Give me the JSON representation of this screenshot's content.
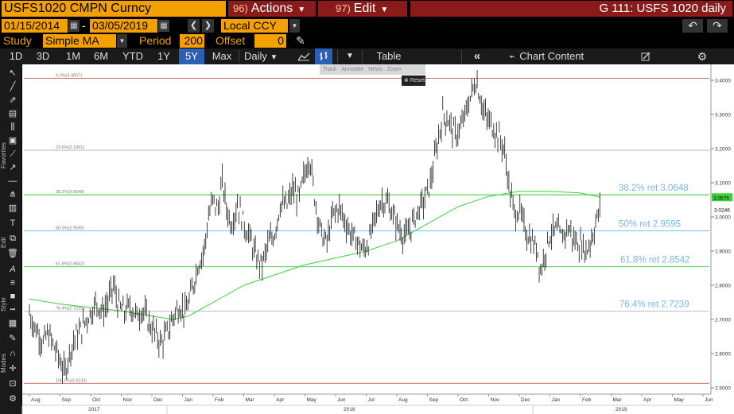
{
  "header": {
    "security": "USFS1020 CMPN Curncy",
    "actions_num": "96)",
    "actions_label": "Actions",
    "edit_num": "97)",
    "edit_label": "Edit",
    "screen_title": "G 111: USFS 1020 daily"
  },
  "controls": {
    "start_date": "01/15/2014",
    "dash": "-",
    "end_date": "03/05/2019",
    "currency": "Local CCY",
    "study_label": "Study",
    "study_value": "Simple MA",
    "period_label": "Period",
    "period_value": "200",
    "offset_label": "Offset",
    "offset_value": "0"
  },
  "toolbar": {
    "ranges": [
      "1D",
      "3D",
      "1M",
      "6M",
      "YTD",
      "1Y",
      "5Y",
      "Max"
    ],
    "selected_range": "5Y",
    "frequency": "Daily",
    "table_label": "Table",
    "chart_content_label": "Chart Content"
  },
  "popup": {
    "items": [
      "Track",
      "Annotate",
      "News",
      "Zoom"
    ],
    "reset": "Reset"
  },
  "side_labels": {
    "favorites": "Favorites",
    "edit": "Edit",
    "style": "Style",
    "modes": "Modes"
  },
  "chart_data": {
    "type": "line",
    "series_style": "ohlc-bars",
    "ylim": [
      2.5,
      4.0
    ],
    "y_ticks": [
      "2.5000",
      "2.6000",
      "2.7000",
      "2.8000",
      "2.9000",
      "3.0000",
      "3.1000",
      "3.2000",
      "3.3000",
      "3.4000"
    ],
    "x_month_labels": [
      "Aug",
      "Sep",
      "Oct",
      "Nov",
      "Dec",
      "Jan",
      "Feb",
      "Mar",
      "Apr",
      "May",
      "Jun",
      "Jul",
      "Aug",
      "Sep",
      "Oct",
      "Nov",
      "Dec",
      "Jan",
      "Feb",
      "Mar",
      "Apr",
      "May",
      "Jun"
    ],
    "x_year_labels": [
      {
        "label": "2017",
        "month_index": 2
      },
      {
        "label": "2018",
        "month_index": 11
      },
      {
        "label": "2019",
        "month_index": 19
      }
    ],
    "last_price": "3.0246",
    "ma_last": "3.0575",
    "price_series": [
      {
        "m": 0.0,
        "v": 2.72
      },
      {
        "m": 0.15,
        "v": 2.68
      },
      {
        "m": 0.3,
        "v": 2.66
      },
      {
        "m": 0.45,
        "v": 2.63
      },
      {
        "m": 0.6,
        "v": 2.66
      },
      {
        "m": 0.8,
        "v": 2.62
      },
      {
        "m": 1.0,
        "v": 2.58
      },
      {
        "m": 1.15,
        "v": 2.54
      },
      {
        "m": 1.3,
        "v": 2.6
      },
      {
        "m": 1.5,
        "v": 2.65
      },
      {
        "m": 1.7,
        "v": 2.67
      },
      {
        "m": 1.85,
        "v": 2.7
      },
      {
        "m": 2.0,
        "v": 2.72
      },
      {
        "m": 2.2,
        "v": 2.75
      },
      {
        "m": 2.4,
        "v": 2.72
      },
      {
        "m": 2.6,
        "v": 2.76
      },
      {
        "m": 2.75,
        "v": 2.8
      },
      {
        "m": 2.9,
        "v": 2.74
      },
      {
        "m": 3.1,
        "v": 2.72
      },
      {
        "m": 3.3,
        "v": 2.74
      },
      {
        "m": 3.5,
        "v": 2.71
      },
      {
        "m": 3.7,
        "v": 2.73
      },
      {
        "m": 3.9,
        "v": 2.69
      },
      {
        "m": 4.1,
        "v": 2.66
      },
      {
        "m": 4.3,
        "v": 2.63
      },
      {
        "m": 4.5,
        "v": 2.66
      },
      {
        "m": 4.7,
        "v": 2.71
      },
      {
        "m": 4.9,
        "v": 2.74
      },
      {
        "m": 5.1,
        "v": 2.72
      },
      {
        "m": 5.3,
        "v": 2.78
      },
      {
        "m": 5.5,
        "v": 2.86
      },
      {
        "m": 5.7,
        "v": 2.9
      },
      {
        "m": 5.85,
        "v": 3.0
      },
      {
        "m": 6.0,
        "v": 3.05
      },
      {
        "m": 6.15,
        "v": 3.02
      },
      {
        "m": 6.3,
        "v": 3.1
      },
      {
        "m": 6.45,
        "v": 3.02
      },
      {
        "m": 6.6,
        "v": 2.98
      },
      {
        "m": 6.8,
        "v": 3.04
      },
      {
        "m": 7.0,
        "v": 2.98
      },
      {
        "m": 7.2,
        "v": 2.94
      },
      {
        "m": 7.4,
        "v": 2.88
      },
      {
        "m": 7.6,
        "v": 2.86
      },
      {
        "m": 7.8,
        "v": 2.92
      },
      {
        "m": 8.0,
        "v": 2.95
      },
      {
        "m": 8.2,
        "v": 3.04
      },
      {
        "m": 8.4,
        "v": 3.03
      },
      {
        "m": 8.6,
        "v": 3.08
      },
      {
        "m": 8.8,
        "v": 3.05
      },
      {
        "m": 9.0,
        "v": 3.13
      },
      {
        "m": 9.15,
        "v": 3.18
      },
      {
        "m": 9.3,
        "v": 3.07
      },
      {
        "m": 9.5,
        "v": 2.96
      },
      {
        "m": 9.7,
        "v": 2.92
      },
      {
        "m": 9.9,
        "v": 3.0
      },
      {
        "m": 10.1,
        "v": 3.03
      },
      {
        "m": 10.3,
        "v": 2.99
      },
      {
        "m": 10.5,
        "v": 2.95
      },
      {
        "m": 10.7,
        "v": 2.93
      },
      {
        "m": 10.9,
        "v": 2.9
      },
      {
        "m": 11.1,
        "v": 2.93
      },
      {
        "m": 11.3,
        "v": 3.0
      },
      {
        "m": 11.5,
        "v": 3.05
      },
      {
        "m": 11.7,
        "v": 3.04
      },
      {
        "m": 11.9,
        "v": 3.0
      },
      {
        "m": 12.1,
        "v": 2.96
      },
      {
        "m": 12.3,
        "v": 2.94
      },
      {
        "m": 12.5,
        "v": 2.98
      },
      {
        "m": 12.7,
        "v": 3.02
      },
      {
        "m": 12.9,
        "v": 3.05
      },
      {
        "m": 13.1,
        "v": 3.1
      },
      {
        "m": 13.3,
        "v": 3.2
      },
      {
        "m": 13.5,
        "v": 3.3
      },
      {
        "m": 13.7,
        "v": 3.28
      },
      {
        "m": 13.9,
        "v": 3.24
      },
      {
        "m": 14.1,
        "v": 3.26
      },
      {
        "m": 14.3,
        "v": 3.32
      },
      {
        "m": 14.5,
        "v": 3.38
      },
      {
        "m": 14.6,
        "v": 3.4
      },
      {
        "m": 14.75,
        "v": 3.34
      },
      {
        "m": 14.9,
        "v": 3.29
      },
      {
        "m": 15.1,
        "v": 3.27
      },
      {
        "m": 15.3,
        "v": 3.24
      },
      {
        "m": 15.5,
        "v": 3.2
      },
      {
        "m": 15.7,
        "v": 3.07
      },
      {
        "m": 15.85,
        "v": 3.01
      },
      {
        "m": 16.0,
        "v": 3.02
      },
      {
        "m": 16.2,
        "v": 2.96
      },
      {
        "m": 16.4,
        "v": 2.93
      },
      {
        "m": 16.6,
        "v": 2.9
      },
      {
        "m": 16.7,
        "v": 2.84
      },
      {
        "m": 16.85,
        "v": 2.9
      },
      {
        "m": 17.0,
        "v": 2.95
      },
      {
        "m": 17.2,
        "v": 2.96
      },
      {
        "m": 17.4,
        "v": 2.94
      },
      {
        "m": 17.6,
        "v": 2.97
      },
      {
        "m": 17.8,
        "v": 2.93
      },
      {
        "m": 18.0,
        "v": 2.92
      },
      {
        "m": 18.2,
        "v": 2.9
      },
      {
        "m": 18.4,
        "v": 2.95
      },
      {
        "m": 18.55,
        "v": 3.0
      },
      {
        "m": 18.65,
        "v": 3.02
      }
    ],
    "ma_series": [
      {
        "m": 0.0,
        "v": 2.76
      },
      {
        "m": 1.0,
        "v": 2.745
      },
      {
        "m": 2.0,
        "v": 2.735
      },
      {
        "m": 3.0,
        "v": 2.725
      },
      {
        "m": 4.0,
        "v": 2.71
      },
      {
        "m": 4.7,
        "v": 2.7
      },
      {
        "m": 5.2,
        "v": 2.71
      },
      {
        "m": 6.0,
        "v": 2.75
      },
      {
        "m": 7.0,
        "v": 2.8
      },
      {
        "m": 8.0,
        "v": 2.83
      },
      {
        "m": 9.0,
        "v": 2.86
      },
      {
        "m": 10.0,
        "v": 2.88
      },
      {
        "m": 11.0,
        "v": 2.9
      },
      {
        "m": 12.0,
        "v": 2.93
      },
      {
        "m": 13.0,
        "v": 2.98
      },
      {
        "m": 14.0,
        "v": 3.03
      },
      {
        "m": 15.0,
        "v": 3.06
      },
      {
        "m": 16.0,
        "v": 3.075
      },
      {
        "m": 17.0,
        "v": 3.075
      },
      {
        "m": 18.0,
        "v": 3.07
      },
      {
        "m": 18.65,
        "v": 3.0575
      }
    ],
    "fib_levels": [
      {
        "left_label": "0.0%(3.4057)",
        "value": 3.4057,
        "right_label": "",
        "color": "#c0504d"
      },
      {
        "left_label": "23.6%(3.1951)",
        "value": 3.1951,
        "right_label": "",
        "color": "#b0b0b0"
      },
      {
        "left_label": "38.2%(3.0648)",
        "value": 3.0648,
        "right_label": "38.2% ret 3.0648",
        "color": "#33cc33"
      },
      {
        "left_label": "50.0%(2.9595)",
        "value": 2.9595,
        "right_label": "50% ret 2.9595",
        "color": "#4fc3e8"
      },
      {
        "left_label": "61.8%(2.8542)",
        "value": 2.8542,
        "right_label": "61.8% ret 2.8542",
        "color": "#33cc33"
      },
      {
        "left_label": "76.4%(2.7239)",
        "value": 2.7239,
        "right_label": "76.4% ret 2.7239",
        "color": "#b0b0b0"
      },
      {
        "left_label": "100.0%(2.5133)",
        "value": 2.5133,
        "right_label": "",
        "color": "#c0504d"
      }
    ]
  }
}
